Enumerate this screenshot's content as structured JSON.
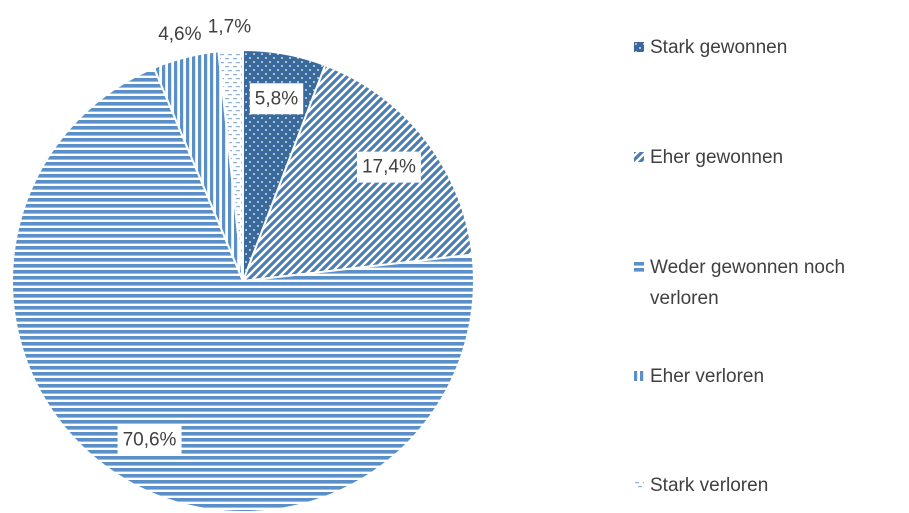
{
  "chart_data": {
    "type": "pie",
    "categories": [
      "Stark gewonnen",
      "Eher gewonnen",
      "Weder gewonnen noch verloren",
      "Eher verloren",
      "Stark verloren"
    ],
    "values": [
      5.8,
      17.4,
      70.6,
      4.6,
      1.7
    ],
    "value_labels": [
      "5,8%",
      "17,4%",
      "70,6%",
      "4,6%",
      "1,7%"
    ],
    "colors": [
      "#3a6a9b",
      "#4a7db3",
      "#5b8fc7",
      "#5b8fc7",
      "#8fb2d9"
    ],
    "patterns": [
      "dots",
      "diagonal",
      "horizontal",
      "vertical",
      "dashes"
    ],
    "start_angle": 0,
    "direction": "clockwise",
    "legend": "right"
  }
}
